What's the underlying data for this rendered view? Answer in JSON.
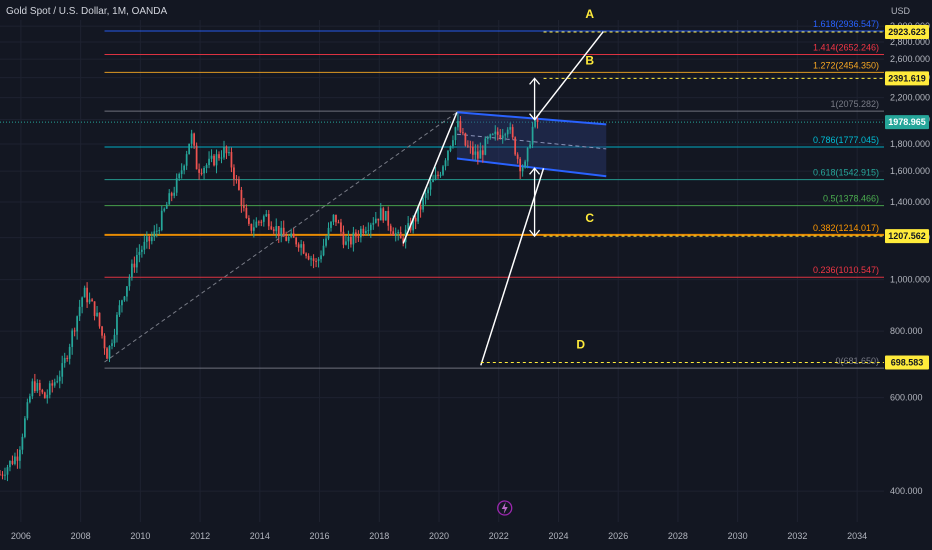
{
  "header": {
    "title": "Gold Spot / U.S. Dollar, 1M, OANDA"
  },
  "axis_unit": "USD",
  "colors": {
    "bg": "#131722",
    "up": "#26a69a",
    "down": "#ef5350",
    "white": "#ffffff",
    "yellow": "#ffeb3b",
    "channel_line": "#2962ff",
    "channel_fill": "#2a3a73"
  },
  "chart_data": {
    "type": "candlestick",
    "title": "Gold Spot / U.S. Dollar, 1M, OANDA",
    "ylabel": "USD",
    "ylim": [
      350,
      3080
    ],
    "xlim": [
      2005.3,
      2034.9
    ],
    "x_ticks": [
      "2006",
      "2008",
      "2010",
      "2012",
      "2014",
      "2016",
      "2018",
      "2020",
      "2022",
      "2024",
      "2026",
      "2028",
      "2030",
      "2032",
      "2034"
    ],
    "y_ticks": [
      400,
      600,
      800,
      1000,
      1200,
      1400,
      1600,
      1800,
      2000,
      2200,
      2400,
      2600,
      2800,
      3000
    ],
    "price_anchors": [
      {
        "x": 2005.3,
        "y": 430
      },
      {
        "x": 2005.9,
        "y": 470
      },
      {
        "x": 2006.4,
        "y": 640
      },
      {
        "x": 2006.8,
        "y": 600
      },
      {
        "x": 2007.4,
        "y": 680
      },
      {
        "x": 2008.1,
        "y": 950
      },
      {
        "x": 2008.5,
        "y": 870
      },
      {
        "x": 2008.9,
        "y": 720
      },
      {
        "x": 2009.4,
        "y": 930
      },
      {
        "x": 2009.9,
        "y": 1120
      },
      {
        "x": 2010.5,
        "y": 1220
      },
      {
        "x": 2010.9,
        "y": 1390
      },
      {
        "x": 2011.3,
        "y": 1550
      },
      {
        "x": 2011.7,
        "y": 1880
      },
      {
        "x": 2011.9,
        "y": 1620
      },
      {
        "x": 2012.3,
        "y": 1650
      },
      {
        "x": 2012.8,
        "y": 1750
      },
      {
        "x": 2013.0,
        "y": 1680
      },
      {
        "x": 2013.4,
        "y": 1400
      },
      {
        "x": 2013.6,
        "y": 1240
      },
      {
        "x": 2014.2,
        "y": 1320
      },
      {
        "x": 2014.8,
        "y": 1200
      },
      {
        "x": 2015.3,
        "y": 1180
      },
      {
        "x": 2015.9,
        "y": 1070
      },
      {
        "x": 2016.5,
        "y": 1320
      },
      {
        "x": 2016.9,
        "y": 1160
      },
      {
        "x": 2017.5,
        "y": 1260
      },
      {
        "x": 2018.1,
        "y": 1340
      },
      {
        "x": 2018.7,
        "y": 1180
      },
      {
        "x": 2019.2,
        "y": 1300
      },
      {
        "x": 2019.7,
        "y": 1500
      },
      {
        "x": 2020.0,
        "y": 1580
      },
      {
        "x": 2020.6,
        "y": 1970
      },
      {
        "x": 2020.9,
        "y": 1780
      },
      {
        "x": 2021.3,
        "y": 1700
      },
      {
        "x": 2021.6,
        "y": 1810
      },
      {
        "x": 2022.1,
        "y": 1900
      },
      {
        "x": 2022.3,
        "y": 1960
      },
      {
        "x": 2022.7,
        "y": 1650
      },
      {
        "x": 2022.9,
        "y": 1630
      },
      {
        "x": 2023.1,
        "y": 1920
      },
      {
        "x": 2023.3,
        "y": 1979
      }
    ],
    "fib_levels": [
      {
        "ratio": "1.618",
        "value": "2936.547",
        "color": "#2962ff",
        "width": "full"
      },
      {
        "ratio": "1.414",
        "value": "2652.246",
        "color": "#f23645",
        "width": "full"
      },
      {
        "ratio": "1.272",
        "value": "2454.350",
        "color": "#f5a623",
        "width": "full"
      },
      {
        "ratio": "1",
        "value": "2075.282",
        "color": "#787b86",
        "width": "full"
      },
      {
        "ratio": "0.786",
        "value": "1777.045",
        "color": "#00bcd4",
        "width": "full"
      },
      {
        "ratio": "0.618",
        "value": "1542.915",
        "color": "#26a69a",
        "width": "full"
      },
      {
        "ratio": "0.5",
        "value": "1378.466",
        "color": "#4caf50",
        "width": "full"
      },
      {
        "ratio": "0.382",
        "value": "1214.017",
        "color": "#ff9800",
        "width": "thick"
      },
      {
        "ratio": "0.236",
        "value": "1010.547",
        "color": "#f23645",
        "width": "full"
      },
      {
        "ratio": "0",
        "value": "681.650",
        "color": "#787b86",
        "width": "full"
      }
    ],
    "fib_labels": [
      "1.618(2936.547)",
      "1.414(2652.246)",
      "1.272(2454.350)",
      "1(2075.282)",
      "0.786(1777.045)",
      "0.618(1542.915)",
      "0.5(1378.466)",
      "0.382(1214.017)",
      "0.236(1010.547)",
      "0(681.650)"
    ],
    "price_tags": [
      {
        "label": "2923.623",
        "value": 2923.623,
        "style": "yellow"
      },
      {
        "label": "2391.619",
        "value": 2391.619,
        "style": "yellow"
      },
      {
        "label": "1978.965",
        "value": 1978.965,
        "style": "green"
      },
      {
        "label": "1207.562",
        "value": 1207.562,
        "style": "yellow"
      },
      {
        "label": "698.583",
        "value": 698.583,
        "style": "yellow"
      }
    ],
    "targets": [
      {
        "label": "A",
        "x": 2023.5,
        "y": 2923.623
      },
      {
        "label": "B",
        "x": 2023.5,
        "y": 2391.619
      },
      {
        "label": "C",
        "x": 2023.5,
        "y": 1207.562
      },
      {
        "label": "D",
        "x": 2021.4,
        "y": 698.583
      }
    ],
    "target_letters": [
      "A",
      "B",
      "C",
      "D"
    ],
    "channel": {
      "upper": [
        [
          2020.6,
          2065
        ],
        [
          2025.6,
          1960
        ]
      ],
      "lower": [
        [
          2020.6,
          1690
        ],
        [
          2025.6,
          1565
        ]
      ],
      "mid": [
        [
          2020.6,
          1878
        ],
        [
          2025.6,
          1762
        ]
      ]
    },
    "projection_lines": [
      [
        [
          2018.8,
          1170
        ],
        [
          2020.6,
          2065
        ]
      ],
      [
        [
          2023.2,
          2000
        ],
        [
          2025.5,
          2930
        ]
      ],
      [
        [
          2021.4,
          690
        ],
        [
          2023.5,
          1620
        ]
      ]
    ],
    "trend_diagonal": [
      [
        2008.8,
        700
      ],
      [
        2020.6,
        2065
      ]
    ],
    "current_price_line": 1978.965
  }
}
